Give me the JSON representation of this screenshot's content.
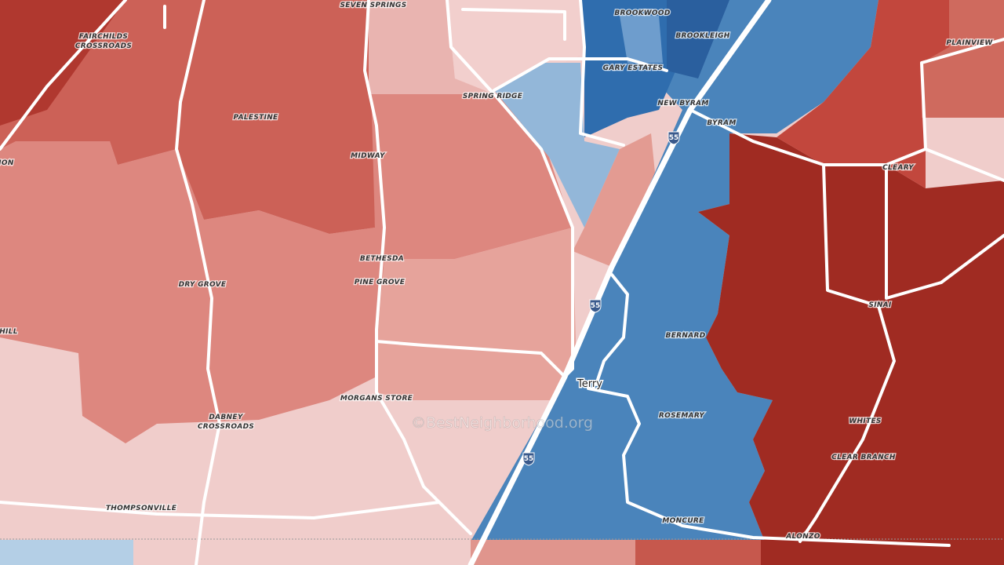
{
  "map": {
    "places": [
      "SEVEN SPRINGS",
      "FAIRCHILDS",
      "CROSSROADS",
      "BROOKWOOD",
      "BROOKLEIGH",
      "PLAINVIEW",
      "GARY ESTATES",
      "SPRING RIDGE",
      "NEW BYRAM",
      "PALESTINE",
      "BYRAM",
      "CLEARY",
      "MIDWAY",
      "ION",
      "BETHESDA",
      "PINE GROVE",
      "DRY GROVE",
      "HILL",
      "SINAI",
      "BERNARD",
      "MORGANS STORE",
      "ROSEMARY",
      "WHITES",
      "DABNEY",
      "CROSSROADS",
      "CLEAR BRANCH",
      "THOMPSONVILLE",
      "MONCURE",
      "ALONZO"
    ],
    "town": "Terry",
    "highway_shields": [
      "55",
      "55",
      "55"
    ],
    "watermark": "©BestNeighborhood.org"
  }
}
